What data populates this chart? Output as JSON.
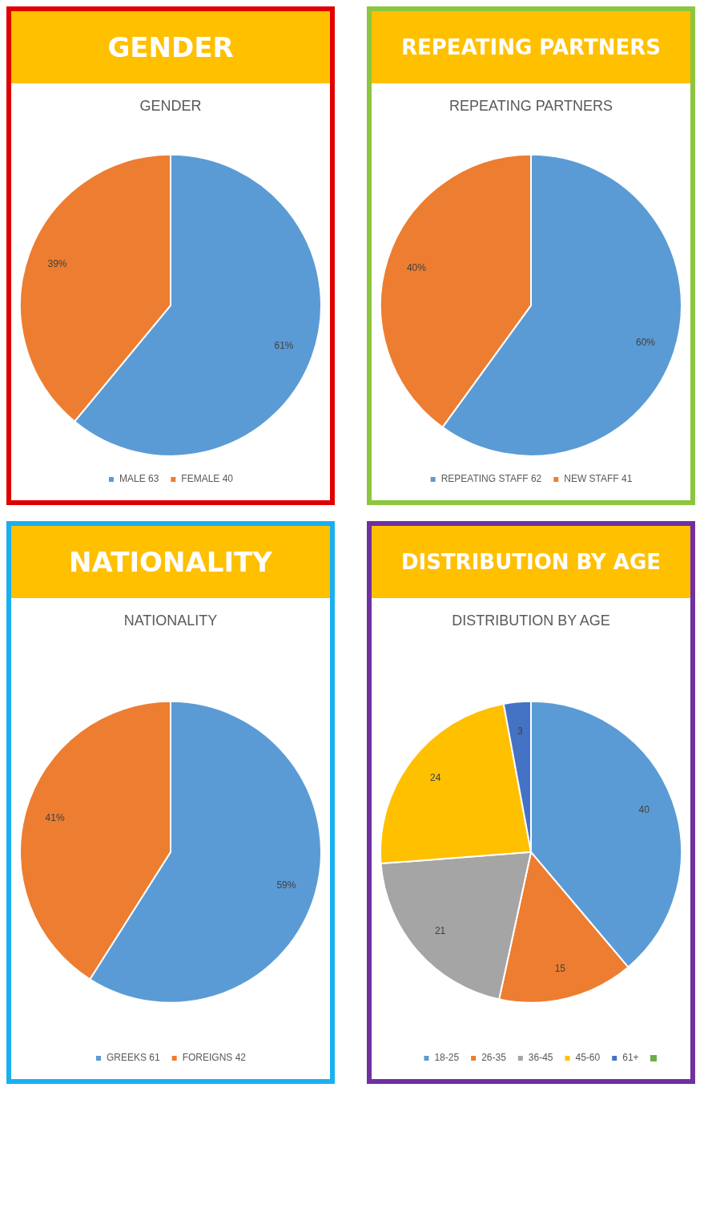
{
  "chart_data": [
    {
      "type": "pie",
      "title": "GENDER",
      "subtitle": "GENDER",
      "categories": [
        "MALE 63",
        "FEMALE 40"
      ],
      "values": [
        61,
        39
      ],
      "colors": [
        "#5b9bd5",
        "#ed7d31"
      ],
      "value_labels": [
        "61%",
        "39%"
      ],
      "legend": "bottom"
    },
    {
      "type": "pie",
      "title": "REPEATING PARTNERS",
      "subtitle": "REPEATING PARTNERS",
      "categories": [
        "REPEATING STAFF 62",
        "NEW STAFF 41"
      ],
      "values": [
        60,
        40
      ],
      "colors": [
        "#5b9bd5",
        "#ed7d31"
      ],
      "value_labels": [
        "60%",
        "40%"
      ],
      "legend": "bottom"
    },
    {
      "type": "pie",
      "title": "NATIONALITY",
      "subtitle": "NATIONALITY",
      "categories": [
        "GREEKS 61",
        "FOREIGNS 42"
      ],
      "values": [
        59,
        41
      ],
      "colors": [
        "#5b9bd5",
        "#ed7d31"
      ],
      "value_labels": [
        "59%",
        "41%"
      ],
      "legend": "bottom"
    },
    {
      "type": "pie",
      "title": "DISTRIBUTION BY AGE",
      "subtitle": "DISTRIBUTION BY AGE",
      "categories": [
        "18-25",
        "26-35",
        "36-45",
        "45-60",
        "61+"
      ],
      "values": [
        40,
        15,
        21,
        24,
        3
      ],
      "colors": [
        "#5b9bd5",
        "#ed7d31",
        "#a5a5a5",
        "#ffc000",
        "#4472c4"
      ],
      "data_labels": true,
      "legend": "bottom"
    }
  ]
}
